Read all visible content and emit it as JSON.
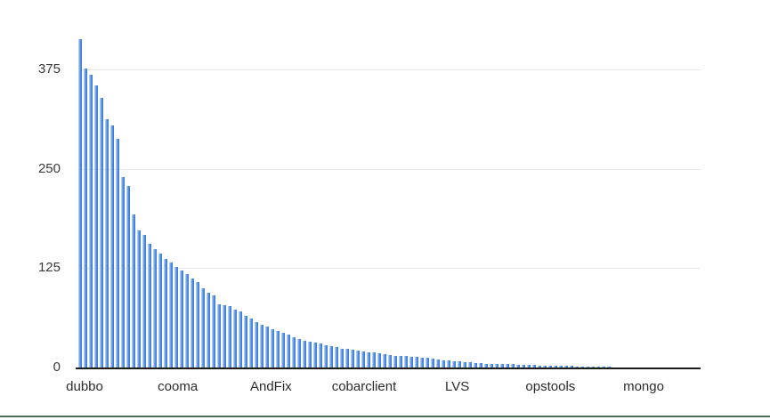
{
  "chart_data": {
    "type": "bar",
    "title": "",
    "xlabel": "",
    "ylabel": "",
    "legend": "none",
    "grid": true,
    "background_color": "#ffffff",
    "bar_color": "#4189e8",
    "bar_highlight_color": "#a9cdf6",
    "gridline_color": "#e6e6e6",
    "axis_line_color": "#1d1d1d",
    "y_axis": {
      "ticks": [
        0,
        125,
        250,
        375
      ],
      "range": [
        0,
        440
      ]
    },
    "x_axis": {
      "labels": [
        "dubbo",
        "cooma",
        "AndFix",
        "cobarclient",
        "LVS",
        "opstools",
        "mongo"
      ]
    },
    "values": [
      413,
      376,
      368,
      355,
      339,
      312,
      304,
      288,
      240,
      228,
      192,
      172,
      167,
      156,
      149,
      143,
      137,
      132,
      127,
      122,
      117,
      112,
      107,
      100,
      94,
      91,
      80,
      78,
      77,
      73,
      71,
      65,
      61,
      57,
      54,
      51,
      48,
      46,
      44,
      41,
      38,
      36,
      34,
      33,
      31,
      30,
      28,
      27,
      26,
      24,
      23,
      22,
      21,
      20,
      19,
      19,
      18,
      17,
      16,
      15,
      14,
      14,
      13,
      13,
      12,
      12,
      11,
      10,
      9,
      9,
      8,
      8,
      7,
      7,
      6,
      6,
      5,
      5,
      5,
      4,
      4,
      4,
      3,
      3,
      3,
      3,
      2,
      2,
      2,
      2,
      2,
      2,
      2,
      1,
      1,
      1,
      1,
      1,
      1,
      1
    ]
  },
  "decor": {
    "bottom_rule_color": "#4e6a58"
  }
}
